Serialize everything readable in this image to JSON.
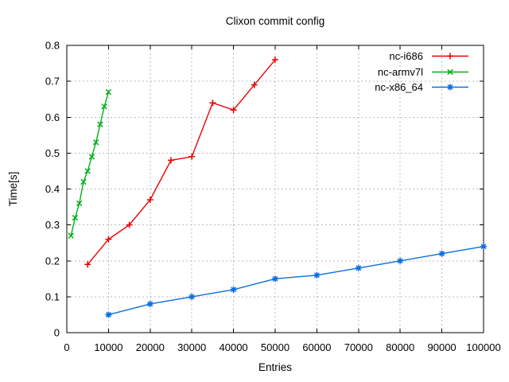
{
  "chart_data": {
    "type": "line",
    "title": "Clixon commit config",
    "xlabel": "Entries",
    "ylabel": "Time[s]",
    "xlim": [
      0,
      100000
    ],
    "ylim": [
      0,
      0.8
    ],
    "grid": true,
    "legend_position": "top-right-inside",
    "x_ticks": {
      "values": [
        0,
        10000,
        20000,
        30000,
        40000,
        50000,
        60000,
        70000,
        80000,
        90000,
        100000
      ],
      "labels": [
        "0",
        "10000",
        "20000",
        "30000",
        "40000",
        "50000",
        "60000",
        "70000",
        "80000",
        "90000",
        "100000"
      ]
    },
    "y_ticks": {
      "values": [
        0,
        0.1,
        0.2,
        0.3,
        0.4,
        0.5,
        0.6,
        0.7,
        0.8
      ],
      "labels": [
        "0",
        "0.1",
        "0.2",
        "0.3",
        "0.4",
        "0.5",
        "0.6",
        "0.7",
        "0.8"
      ]
    },
    "series": [
      {
        "name": "nc-i686",
        "color": "#ee0000",
        "marker": "plus",
        "x": [
          5000,
          10000,
          15000,
          20000,
          25000,
          30000,
          35000,
          40000,
          45000,
          50000
        ],
        "y": [
          0.19,
          0.26,
          0.3,
          0.37,
          0.48,
          0.49,
          0.64,
          0.62,
          0.69,
          0.76
        ]
      },
      {
        "name": "nc-armv7l",
        "color": "#00b018",
        "marker": "cross",
        "x": [
          1000,
          2000,
          3000,
          4000,
          5000,
          6000,
          7000,
          8000,
          9000,
          10000
        ],
        "y": [
          0.27,
          0.32,
          0.36,
          0.42,
          0.45,
          0.49,
          0.53,
          0.58,
          0.63,
          0.67
        ]
      },
      {
        "name": "nc-x86_64",
        "color": "#0a6fe0",
        "marker": "asterisk",
        "x": [
          10000,
          20000,
          30000,
          40000,
          50000,
          60000,
          70000,
          80000,
          90000,
          100000
        ],
        "y": [
          0.05,
          0.08,
          0.1,
          0.12,
          0.15,
          0.16,
          0.18,
          0.2,
          0.22,
          0.24
        ]
      }
    ]
  }
}
